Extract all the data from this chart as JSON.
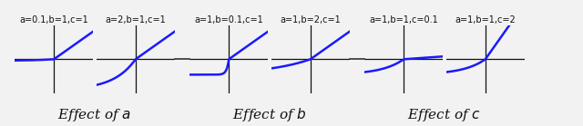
{
  "subplots": [
    {
      "a": 0.1,
      "b": 1,
      "c": 1,
      "label": "a=0.1,b=1,c=1"
    },
    {
      "a": 2,
      "b": 1,
      "c": 1,
      "label": "a=2,b=1,c=1"
    },
    {
      "a": 1,
      "b": 0.1,
      "c": 1,
      "label": "a=1,b=0.1,c=1"
    },
    {
      "a": 1,
      "b": 2,
      "c": 1,
      "label": "a=1,b=2,c=1"
    },
    {
      "a": 1,
      "b": 1,
      "c": 0.1,
      "label": "a=1,b=1,c=0.1"
    },
    {
      "a": 1,
      "b": 1,
      "c": 2,
      "label": "a=1,b=1,c=2"
    }
  ],
  "group_labels": [
    "Effect of $a$",
    "Effect of $b$",
    "Effect of $c$"
  ],
  "line_color": "#1a1aff",
  "line_width": 1.8,
  "x_range": [
    -1.8,
    1.8
  ],
  "y_range": [
    -2.2,
    2.2
  ],
  "bg_color": "#f0f0f0",
  "axis_color": "#111111",
  "label_fontsize": 7.0,
  "group_label_fontsize": 11.0
}
